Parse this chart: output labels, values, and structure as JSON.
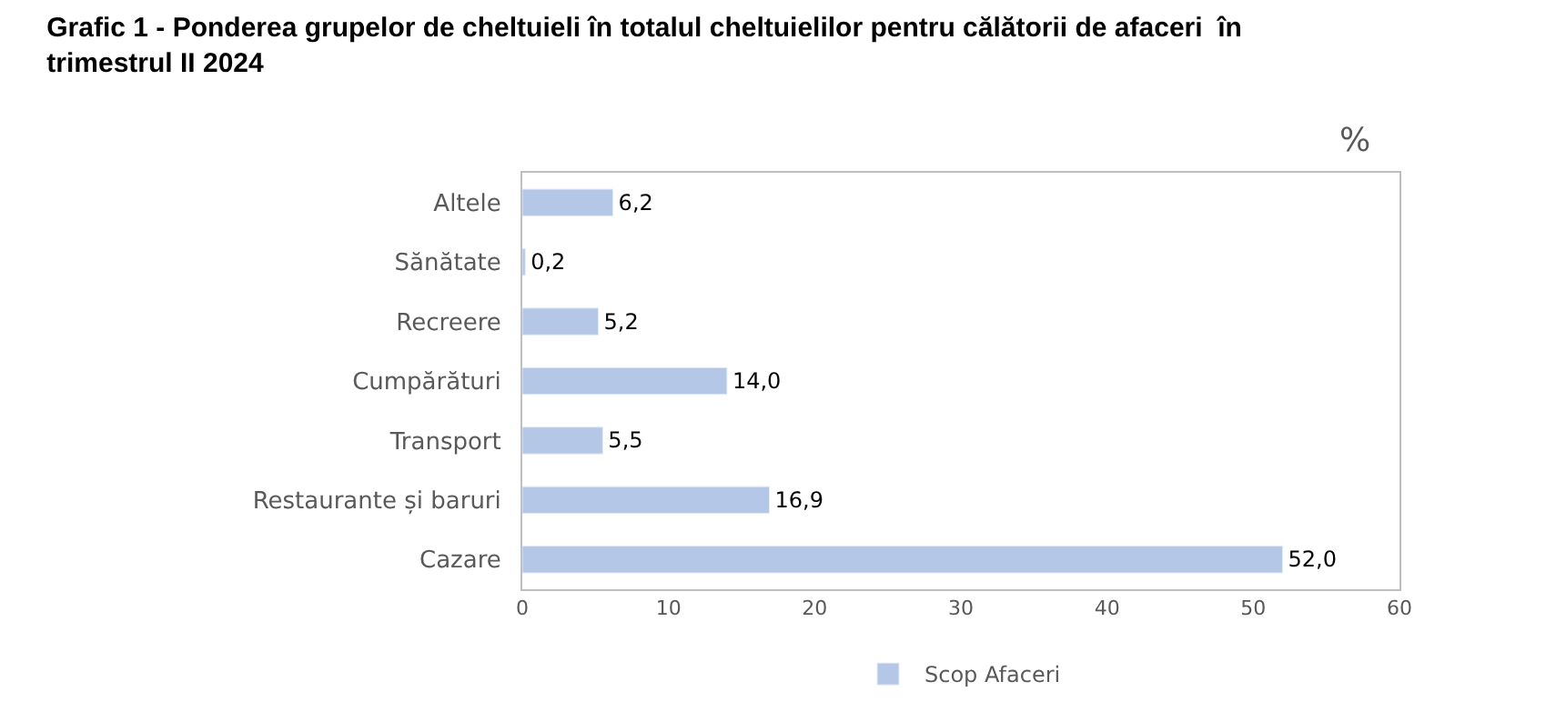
{
  "chart_data": {
    "type": "bar",
    "orientation": "horizontal",
    "title": "Grafic 1 - Ponderea grupelor de cheltuieli în totalul cheltuielilor pentru călătorii de afaceri  în trimestrul II 2024",
    "categories": [
      "Altele",
      "Sănătate",
      "Recreere",
      "Cumpărături",
      "Transport",
      "Restaurante și baruri",
      "Cazare"
    ],
    "series": [
      {
        "name": "Scop Afaceri",
        "color": "#b4c7e7",
        "values": [
          6.2,
          0.2,
          5.2,
          14.0,
          5.5,
          16.9,
          52.0
        ],
        "value_labels": [
          "6,2",
          "0,2",
          "5,2",
          "14,0",
          "5,5",
          "16,9",
          "52,0"
        ]
      }
    ],
    "annotations": [
      "%"
    ],
    "xlim": [
      0,
      60
    ],
    "xticks": [
      0,
      10,
      20,
      30,
      40,
      50,
      60
    ],
    "legend": "bottom"
  }
}
